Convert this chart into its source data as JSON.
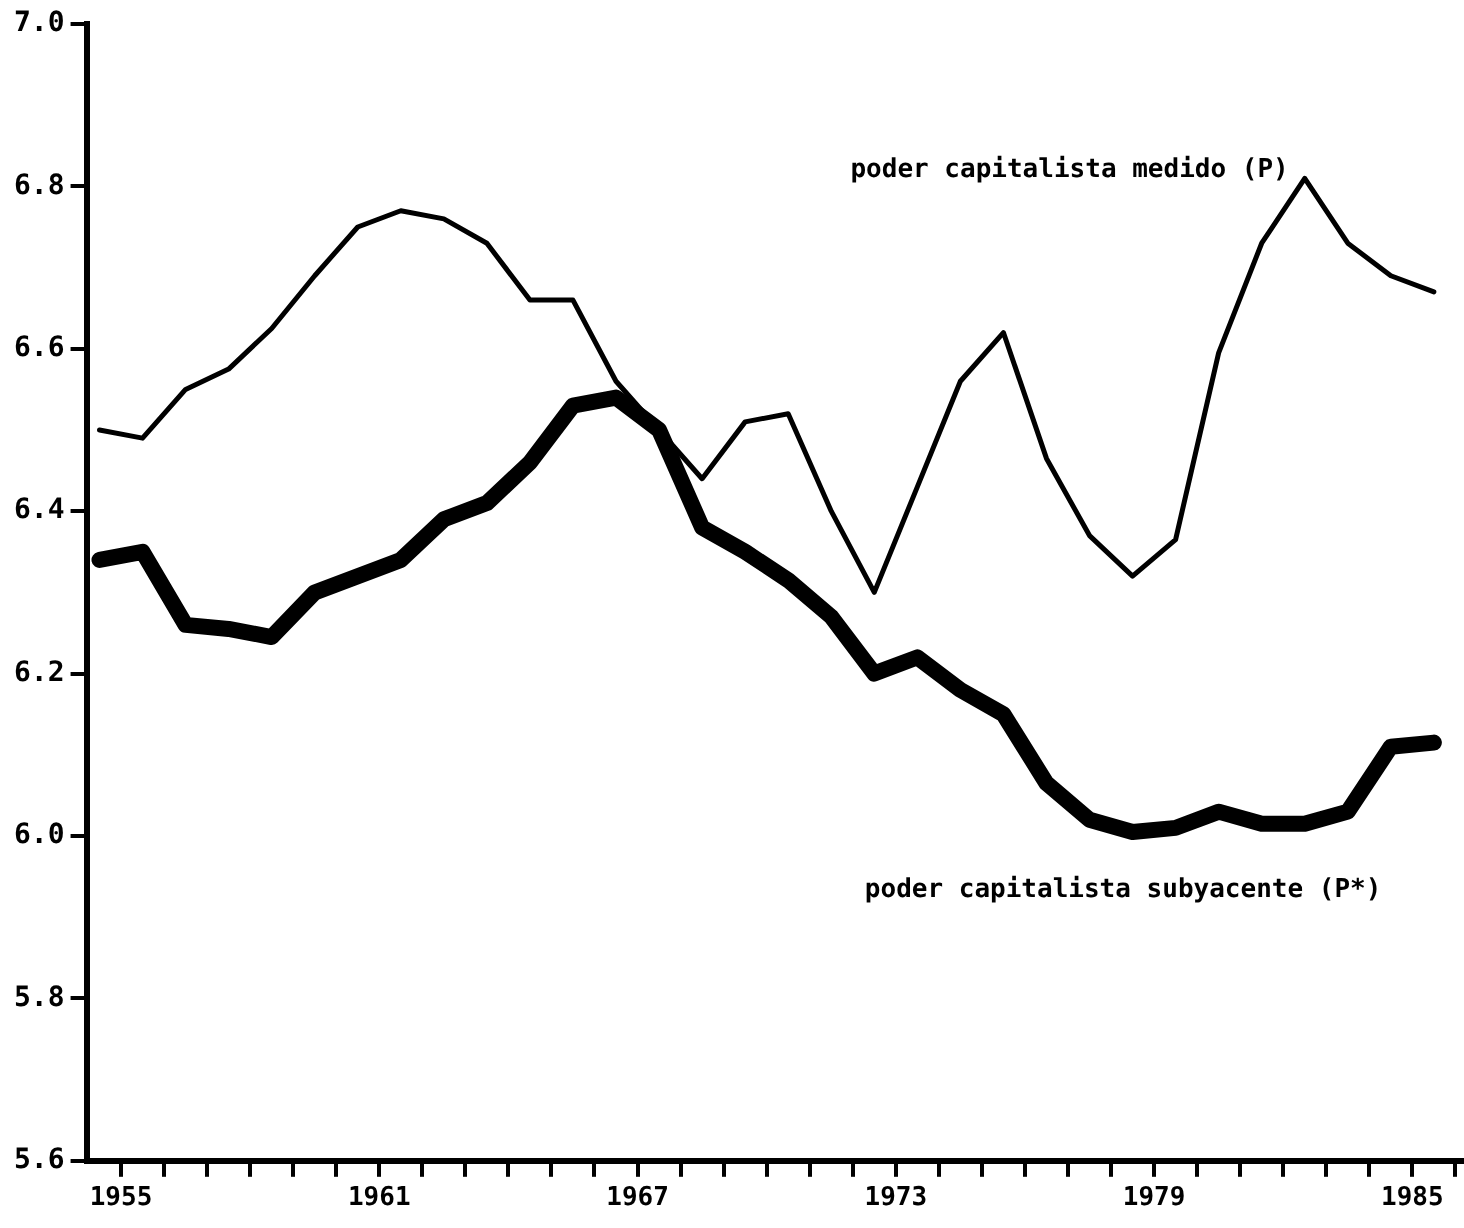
{
  "chart_data": {
    "type": "line",
    "x": [
      1954.5,
      1955.5,
      1956.5,
      1957.5,
      1958.5,
      1959.5,
      1960.5,
      1961.5,
      1962.5,
      1963.5,
      1964.5,
      1965.5,
      1966.5,
      1967.5,
      1968.5,
      1969.5,
      1970.5,
      1971.5,
      1972.5,
      1973.5,
      1974.5,
      1975.5,
      1976.5,
      1977.5,
      1978.5,
      1979.5,
      1980.5,
      1981.5,
      1982.5,
      1983.5,
      1984.5,
      1985.5
    ],
    "series": [
      {
        "name": "poder capitalista medido (P)",
        "color": "#000000",
        "values": [
          6.5,
          6.49,
          6.55,
          6.575,
          6.625,
          6.69,
          6.75,
          6.77,
          6.76,
          6.73,
          6.66,
          6.66,
          6.56,
          6.5,
          6.44,
          6.51,
          6.52,
          6.4,
          6.3,
          6.43,
          6.56,
          6.62,
          6.465,
          6.37,
          6.32,
          6.365,
          6.595,
          6.73,
          6.81,
          6.73,
          6.69,
          6.67
        ]
      },
      {
        "name": "poder capitalista subyacente (P*)",
        "color": "#000000",
        "values": [
          6.34,
          6.35,
          6.26,
          6.255,
          6.245,
          6.3,
          6.32,
          6.34,
          6.39,
          6.41,
          6.46,
          6.53,
          6.54,
          6.5,
          6.38,
          6.35,
          6.315,
          6.27,
          6.2,
          6.22,
          6.18,
          6.15,
          6.065,
          6.02,
          6.005,
          6.01,
          6.03,
          6.015,
          6.015,
          6.03,
          6.11,
          6.115
        ]
      }
    ],
    "xlim": [
      1954.2,
      1986.2
    ],
    "xticks": [
      1955,
      {
        "value": 1956,
        "label": null
      },
      {
        "value": 1957,
        "label": null
      },
      {
        "value": 1958,
        "label": null
      },
      {
        "value": 1959,
        "label": null
      },
      {
        "value": 1960,
        "label": null
      },
      1961,
      {
        "value": 1962,
        "label": null
      },
      {
        "value": 1963,
        "label": null
      },
      {
        "value": 1964,
        "label": null
      },
      {
        "value": 1965,
        "label": null
      },
      {
        "value": 1966,
        "label": null
      },
      1967,
      {
        "value": 1968,
        "label": null
      },
      {
        "value": 1969,
        "label": null
      },
      {
        "value": 1970,
        "label": null
      },
      {
        "value": 1971,
        "label": null
      },
      {
        "value": 1972,
        "label": null
      },
      1973,
      {
        "value": 1974,
        "label": null
      },
      {
        "value": 1975,
        "label": null
      },
      {
        "value": 1976,
        "label": null
      },
      {
        "value": 1977,
        "label": null
      },
      {
        "value": 1978,
        "label": null
      },
      1979,
      {
        "value": 1980,
        "label": null
      },
      {
        "value": 1981,
        "label": null
      },
      {
        "value": 1982,
        "label": null
      },
      {
        "value": 1983,
        "label": null
      },
      {
        "value": 1984,
        "label": null
      },
      1985,
      {
        "value": 1986,
        "label": null
      }
    ],
    "ylim": [
      5.6,
      7.0
    ],
    "yticks": [
      {
        "value": 5.6,
        "label": "5.6"
      },
      5.8,
      {
        "value": 6.0,
        "label": "6.0"
      },
      6.2,
      6.4,
      6.6,
      6.8,
      {
        "value": 7.0,
        "label": "7.0"
      }
    ],
    "grid": false,
    "legend": false,
    "marker": "none",
    "line_style": "solid"
  }
}
